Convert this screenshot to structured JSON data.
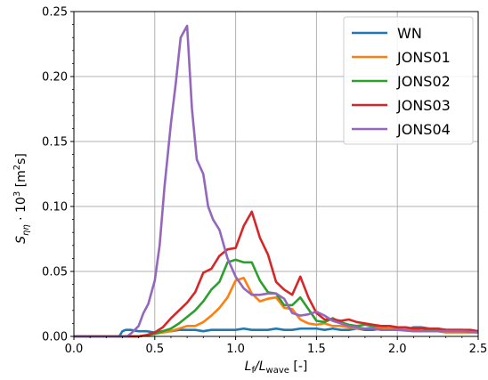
{
  "chart_data": {
    "type": "line",
    "title": "",
    "xlabel": "L_f/L_wave [-]",
    "xlabel_parts": {
      "main": "L",
      "sub1": "f",
      "slash": "/L",
      "sub2": "wave",
      "unit": " [-]"
    },
    "ylabel": "S_ηη · 10^3 [m^2s]",
    "ylabel_parts": {
      "main": "S",
      "sub": "ηη",
      "mult": " · 10",
      "sup": "3",
      "unit_open": " [m",
      "unit_sup": "2",
      "unit_close": "s]"
    },
    "xlim": [
      0.0,
      2.5
    ],
    "ylim": [
      0.0,
      0.25
    ],
    "xticks": [
      0.0,
      0.5,
      1.0,
      1.5,
      2.0,
      2.5
    ],
    "yticks": [
      0.0,
      0.05,
      0.1,
      0.15,
      0.2,
      0.25
    ],
    "xtick_labels": [
      "0.0",
      "0.5",
      "1.0",
      "1.5",
      "2.0",
      "2.5"
    ],
    "ytick_labels": [
      "0.00",
      "0.05",
      "0.10",
      "0.15",
      "0.20",
      "0.25"
    ],
    "grid": true,
    "legend_position": "top-right",
    "series": [
      {
        "name": "WN",
        "color": "#1f77b4",
        "x": [
          0.0,
          0.28,
          0.3,
          0.32,
          0.35,
          0.4,
          0.45,
          0.5,
          0.55,
          0.6,
          0.65,
          0.7,
          0.75,
          0.8,
          0.85,
          0.9,
          0.95,
          1.0,
          1.05,
          1.1,
          1.15,
          1.2,
          1.25,
          1.3,
          1.35,
          1.4,
          1.45,
          1.5,
          1.55,
          1.6,
          1.65,
          1.7,
          1.75,
          1.8,
          1.85,
          1.9,
          1.95,
          2.0,
          2.05,
          2.1,
          2.15,
          2.2,
          2.25,
          2.3,
          2.35,
          2.4,
          2.45,
          2.5
        ],
        "y": [
          0.0,
          0.0,
          0.004,
          0.005,
          0.005,
          0.004,
          0.004,
          0.003,
          0.004,
          0.004,
          0.005,
          0.005,
          0.005,
          0.004,
          0.005,
          0.005,
          0.005,
          0.005,
          0.006,
          0.005,
          0.005,
          0.005,
          0.006,
          0.005,
          0.005,
          0.006,
          0.006,
          0.006,
          0.005,
          0.006,
          0.005,
          0.005,
          0.006,
          0.005,
          0.005,
          0.006,
          0.005,
          0.005,
          0.005,
          0.007,
          0.007,
          0.006,
          0.006,
          0.005,
          0.005,
          0.005,
          0.004,
          0.004
        ]
      },
      {
        "name": "JONS01",
        "color": "#ff7f0e",
        "x": [
          0.0,
          0.4,
          0.45,
          0.5,
          0.55,
          0.6,
          0.65,
          0.7,
          0.75,
          0.8,
          0.85,
          0.9,
          0.95,
          1.0,
          1.05,
          1.1,
          1.15,
          1.2,
          1.25,
          1.3,
          1.35,
          1.4,
          1.45,
          1.5,
          1.55,
          1.6,
          1.65,
          1.7,
          1.75,
          1.8,
          1.85,
          1.9,
          1.95,
          2.0,
          2.05,
          2.1,
          2.15,
          2.2,
          2.25,
          2.3,
          2.35,
          2.4,
          2.45,
          2.5
        ],
        "y": [
          0.0,
          0.0,
          0.001,
          0.002,
          0.003,
          0.004,
          0.006,
          0.008,
          0.008,
          0.011,
          0.016,
          0.022,
          0.03,
          0.043,
          0.045,
          0.033,
          0.027,
          0.029,
          0.03,
          0.022,
          0.021,
          0.013,
          0.01,
          0.009,
          0.01,
          0.008,
          0.008,
          0.007,
          0.006,
          0.006,
          0.007,
          0.007,
          0.006,
          0.006,
          0.005,
          0.005,
          0.004,
          0.004,
          0.004,
          0.003,
          0.003,
          0.003,
          0.003,
          0.003
        ]
      },
      {
        "name": "JONS02",
        "color": "#2ca02c",
        "x": [
          0.0,
          0.4,
          0.45,
          0.5,
          0.55,
          0.6,
          0.65,
          0.7,
          0.75,
          0.8,
          0.85,
          0.9,
          0.95,
          1.0,
          1.05,
          1.1,
          1.15,
          1.2,
          1.25,
          1.3,
          1.35,
          1.4,
          1.45,
          1.5,
          1.55,
          1.6,
          1.65,
          1.7,
          1.75,
          1.8,
          1.85,
          1.9,
          1.95,
          2.0,
          2.05,
          2.1,
          2.15,
          2.2,
          2.25,
          2.3,
          2.35,
          2.4,
          2.45,
          2.5
        ],
        "y": [
          0.0,
          0.0,
          0.001,
          0.002,
          0.004,
          0.006,
          0.01,
          0.015,
          0.02,
          0.027,
          0.036,
          0.042,
          0.057,
          0.059,
          0.057,
          0.057,
          0.043,
          0.034,
          0.033,
          0.024,
          0.024,
          0.03,
          0.021,
          0.012,
          0.011,
          0.014,
          0.011,
          0.009,
          0.008,
          0.009,
          0.008,
          0.008,
          0.008,
          0.007,
          0.007,
          0.006,
          0.006,
          0.005,
          0.005,
          0.005,
          0.004,
          0.004,
          0.004,
          0.003
        ]
      },
      {
        "name": "JONS03",
        "color": "#d62728",
        "x": [
          0.0,
          0.4,
          0.45,
          0.5,
          0.55,
          0.6,
          0.65,
          0.7,
          0.75,
          0.8,
          0.85,
          0.9,
          0.95,
          1.0,
          1.05,
          1.1,
          1.15,
          1.2,
          1.25,
          1.3,
          1.35,
          1.4,
          1.45,
          1.5,
          1.55,
          1.6,
          1.65,
          1.7,
          1.75,
          1.8,
          1.85,
          1.9,
          1.95,
          2.0,
          2.05,
          2.1,
          2.15,
          2.2,
          2.25,
          2.3,
          2.35,
          2.4,
          2.45,
          2.5
        ],
        "y": [
          0.0,
          0.0,
          0.001,
          0.003,
          0.007,
          0.014,
          0.02,
          0.026,
          0.034,
          0.049,
          0.052,
          0.062,
          0.067,
          0.068,
          0.085,
          0.096,
          0.076,
          0.063,
          0.042,
          0.036,
          0.032,
          0.046,
          0.03,
          0.018,
          0.013,
          0.013,
          0.012,
          0.013,
          0.011,
          0.01,
          0.009,
          0.008,
          0.008,
          0.007,
          0.007,
          0.006,
          0.006,
          0.006,
          0.006,
          0.005,
          0.005,
          0.005,
          0.005,
          0.004
        ]
      },
      {
        "name": "JONS04",
        "color": "#9467bd",
        "x": [
          0.0,
          0.33,
          0.36,
          0.4,
          0.43,
          0.46,
          0.5,
          0.53,
          0.56,
          0.6,
          0.63,
          0.66,
          0.7,
          0.73,
          0.76,
          0.8,
          0.83,
          0.86,
          0.9,
          0.95,
          1.0,
          1.05,
          1.1,
          1.15,
          1.2,
          1.25,
          1.3,
          1.35,
          1.4,
          1.45,
          1.5,
          1.55,
          1.6,
          1.65,
          1.7,
          1.75,
          1.8,
          1.85,
          1.9,
          1.95,
          2.0,
          2.1,
          2.2,
          2.3,
          2.4,
          2.5
        ],
        "y": [
          0.0,
          0.0,
          0.003,
          0.008,
          0.018,
          0.025,
          0.043,
          0.07,
          0.115,
          0.164,
          0.195,
          0.23,
          0.239,
          0.175,
          0.136,
          0.125,
          0.1,
          0.09,
          0.082,
          0.06,
          0.046,
          0.037,
          0.032,
          0.032,
          0.033,
          0.033,
          0.029,
          0.018,
          0.016,
          0.017,
          0.019,
          0.016,
          0.012,
          0.01,
          0.008,
          0.007,
          0.006,
          0.006,
          0.005,
          0.005,
          0.005,
          0.004,
          0.004,
          0.004,
          0.004,
          0.003
        ]
      }
    ]
  }
}
